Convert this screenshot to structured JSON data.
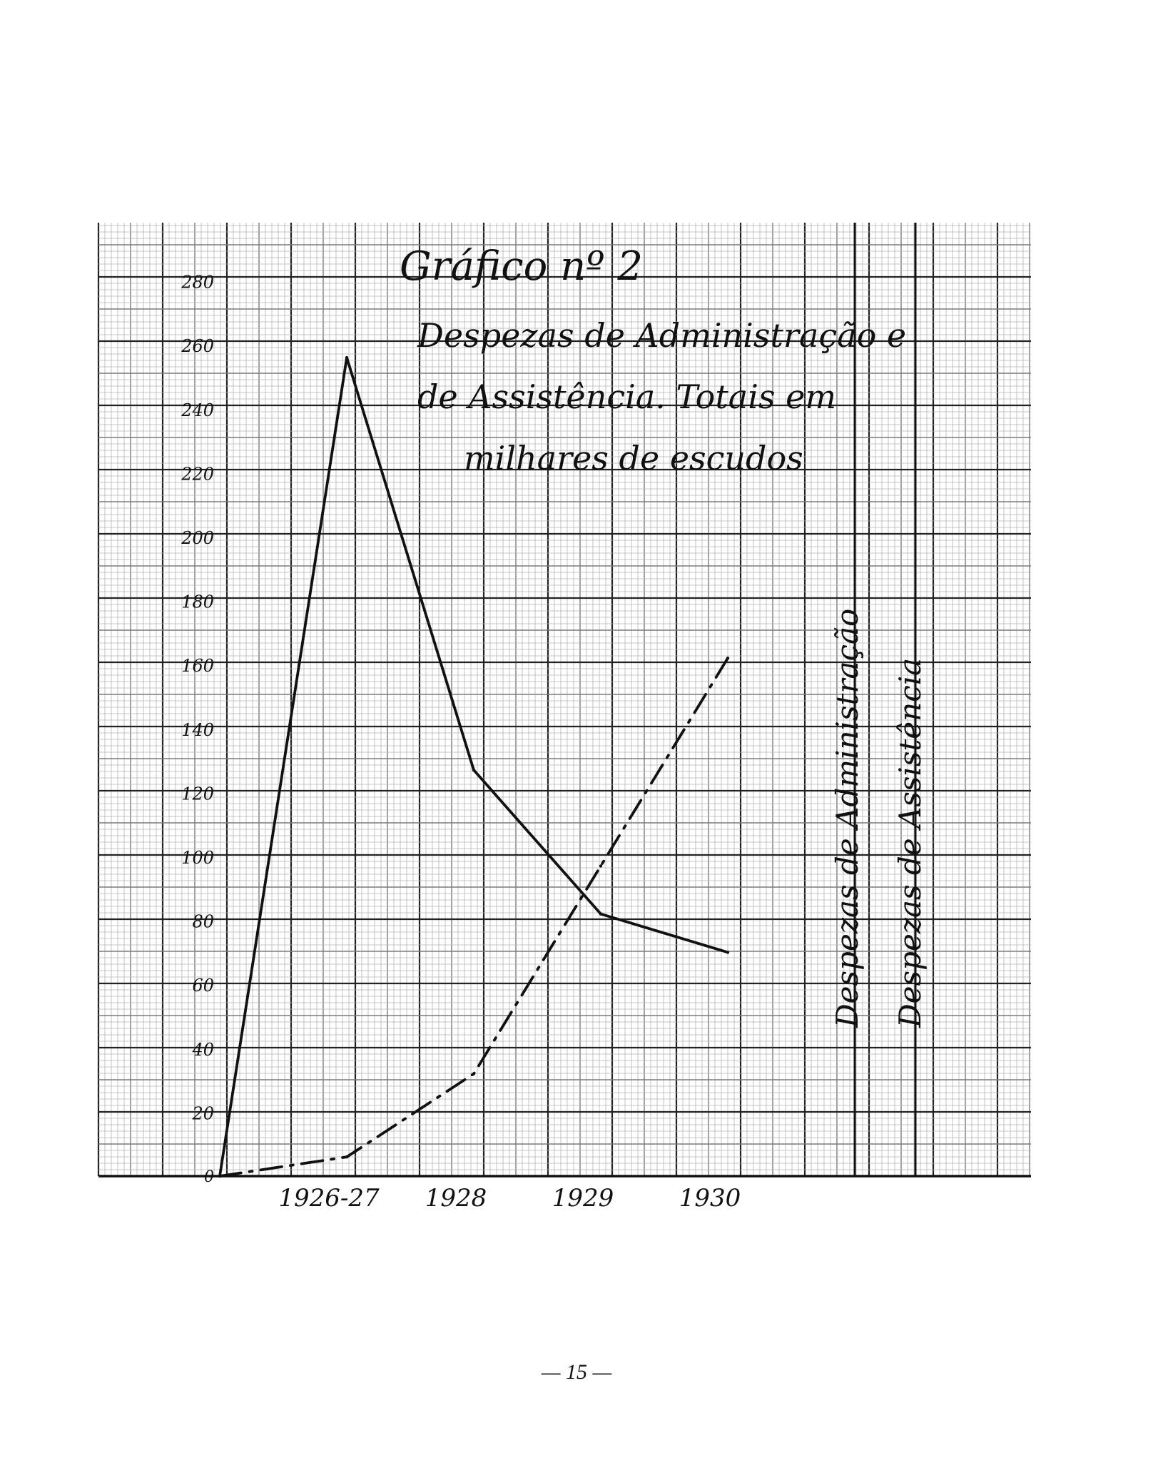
{
  "page": {
    "number": "— 15 —"
  },
  "colors": {
    "ink": "#111111",
    "grid_minor": "#b4b4b4",
    "grid_mid": "#7a7a7a",
    "grid_major": "#222222"
  },
  "chart_data": {
    "type": "line",
    "title": "Gráfico nº 2",
    "subtitle": [
      "Despezas de Administração e",
      "de Assistência. Totais em",
      "milhares de escudos"
    ],
    "categories": [
      "",
      "1926-27",
      "1928",
      "1929",
      "1930"
    ],
    "x_tick_labels": [
      "1926-27",
      "1928",
      "1929",
      "1930"
    ],
    "y_ticks": [
      0,
      20,
      40,
      60,
      80,
      100,
      120,
      140,
      160,
      180,
      200,
      220,
      240,
      260,
      280
    ],
    "ylim": [
      0,
      300
    ],
    "xlabel": "",
    "ylabel": "",
    "grid": true,
    "series": [
      {
        "name": "Despezas de Administração",
        "style": "solid",
        "values": [
          0,
          256,
          127,
          82,
          70
        ]
      },
      {
        "name": "Despezas de Assistência",
        "style": "dashdot",
        "values": [
          0,
          6,
          32,
          97,
          162
        ]
      }
    ]
  }
}
